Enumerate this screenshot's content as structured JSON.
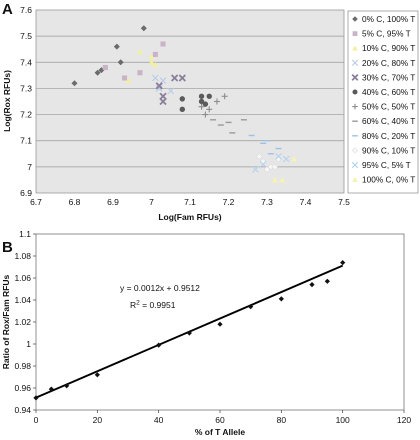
{
  "chart_data": [
    {
      "type": "scatter",
      "panel_label": "A",
      "xlabel": "Log(Fam RFUs)",
      "ylabel": "Log(Rox RFUs)",
      "xlim": [
        6.7,
        7.5
      ],
      "ylim": [
        6.9,
        7.6
      ],
      "x_ticks": [
        "6.7",
        "6.8",
        "6.9",
        "7",
        "7.1",
        "7.2",
        "7.3",
        "7.4",
        "7.5"
      ],
      "y_ticks": [
        "6.9",
        "7",
        "7.1",
        "7.2",
        "7.3",
        "7.4",
        "7.5",
        "7.6"
      ],
      "grid": "horizontal",
      "plot_background": "#e6e6e6",
      "legend_position": "right",
      "series": [
        {
          "name": "0% C,  100% T",
          "marker": "diamond",
          "color": "#6b6b6b",
          "points": [
            [
              6.8,
              7.32
            ],
            [
              6.86,
              7.36
            ],
            [
              6.87,
              7.37
            ],
            [
              6.91,
              7.46
            ],
            [
              6.92,
              7.4
            ],
            [
              6.98,
              7.53
            ]
          ]
        },
        {
          "name": "5% C,  95% T",
          "marker": "square",
          "color": "#c9b3c6",
          "points": [
            [
              6.88,
              7.38
            ],
            [
              6.93,
              7.34
            ],
            [
              6.97,
              7.36
            ],
            [
              7.01,
              7.43
            ],
            [
              7.03,
              7.47
            ]
          ]
        },
        {
          "name": "10% C,  90% T",
          "marker": "triangle",
          "color": "#f2f0a0",
          "points": [
            [
              6.94,
              7.33
            ],
            [
              6.97,
              7.44
            ],
            [
              7.0,
              7.4
            ],
            [
              7.0,
              7.42
            ],
            [
              7.01,
              7.39
            ]
          ]
        },
        {
          "name": "20% C,  80% T",
          "marker": "x",
          "color": "#b8cbe8",
          "points": [
            [
              7.01,
              7.34
            ],
            [
              7.02,
              7.3
            ],
            [
              7.03,
              7.33
            ],
            [
              7.05,
              7.29
            ]
          ]
        },
        {
          "name": "30% C,  70% T",
          "marker": "x-bold",
          "color": "#8a7f99",
          "points": [
            [
              7.02,
              7.31
            ],
            [
              7.03,
              7.25
            ],
            [
              7.03,
              7.27
            ],
            [
              7.06,
              7.34
            ],
            [
              7.08,
              7.34
            ]
          ]
        },
        {
          "name": "40% C,  60% T",
          "marker": "circle",
          "color": "#5a5a5a",
          "points": [
            [
              7.08,
              7.22
            ],
            [
              7.08,
              7.26
            ],
            [
              7.13,
              7.25
            ],
            [
              7.14,
              7.24
            ],
            [
              7.15,
              7.27
            ],
            [
              7.13,
              7.27
            ]
          ]
        },
        {
          "name": "50% C,  50% T",
          "marker": "plus",
          "color": "#8c8c8c",
          "points": [
            [
              7.13,
              7.23
            ],
            [
              7.14,
              7.2
            ],
            [
              7.15,
              7.22
            ],
            [
              7.17,
              7.25
            ],
            [
              7.19,
              7.27
            ]
          ]
        },
        {
          "name": "60% C,  40% T",
          "marker": "dash",
          "color": "#9a9a9a",
          "points": [
            [
              7.16,
              7.18
            ],
            [
              7.18,
              7.16
            ],
            [
              7.2,
              7.17
            ],
            [
              7.21,
              7.13
            ],
            [
              7.24,
              7.18
            ]
          ]
        },
        {
          "name": "80% C,  20% T",
          "marker": "dash",
          "color": "#9fc0e6",
          "points": [
            [
              7.26,
              7.12
            ],
            [
              7.29,
              7.09
            ],
            [
              7.3,
              7.1
            ],
            [
              7.31,
              7.05
            ],
            [
              7.33,
              7.07
            ]
          ]
        },
        {
          "name": "90% C,  10% T",
          "marker": "diamond",
          "color": "#f7f7f7",
          "points": [
            [
              7.28,
              7.04
            ],
            [
              7.29,
              7.02
            ],
            [
              7.31,
              7.0
            ],
            [
              7.3,
              6.99
            ],
            [
              7.33,
              7.03
            ],
            [
              7.32,
              7.0
            ]
          ]
        },
        {
          "name": "95% C,  5% T",
          "marker": "x",
          "color": "#b3d3ec",
          "points": [
            [
              7.27,
              6.99
            ],
            [
              7.29,
              7.01
            ],
            [
              7.33,
              7.04
            ],
            [
              7.35,
              7.03
            ]
          ]
        },
        {
          "name": "100% C,  0% T",
          "marker": "triangle",
          "color": "#f6f3b0",
          "points": [
            [
              7.32,
              6.95
            ],
            [
              7.34,
              6.95
            ],
            [
              7.37,
              7.03
            ]
          ]
        }
      ]
    },
    {
      "type": "scatter",
      "panel_label": "B",
      "xlabel": "% of T Allele",
      "ylabel": "Ratio of Rox/Fam RFUs",
      "xlim": [
        0,
        120
      ],
      "ylim": [
        0.94,
        1.1
      ],
      "x_ticks": [
        "0",
        "20",
        "40",
        "60",
        "80",
        "100",
        "120"
      ],
      "y_ticks": [
        "0.94",
        "0.96",
        "0.98",
        "1",
        "1.02",
        "1.04",
        "1.06",
        "1.08",
        "1.1"
      ],
      "grid": "none",
      "series": [
        {
          "marker": "diamond",
          "color": "#111111",
          "points": [
            [
              0,
              0.951
            ],
            [
              5,
              0.959
            ],
            [
              10,
              0.962
            ],
            [
              20,
              0.972
            ],
            [
              40,
              0.999
            ],
            [
              50,
              1.01
            ],
            [
              60,
              1.018
            ],
            [
              70,
              1.034
            ],
            [
              80,
              1.041
            ],
            [
              90,
              1.054
            ],
            [
              95,
              1.057
            ],
            [
              100,
              1.074
            ]
          ]
        }
      ],
      "trendline": {
        "slope": 0.0012,
        "intercept": 0.9512,
        "x_range": [
          0,
          100
        ]
      },
      "annotations": {
        "equation": "y = 0.0012x + 0.9512",
        "r_squared_prefix": "R",
        "r_squared_sup": "2",
        "r_squared_value": " = 0.9951"
      }
    }
  ]
}
